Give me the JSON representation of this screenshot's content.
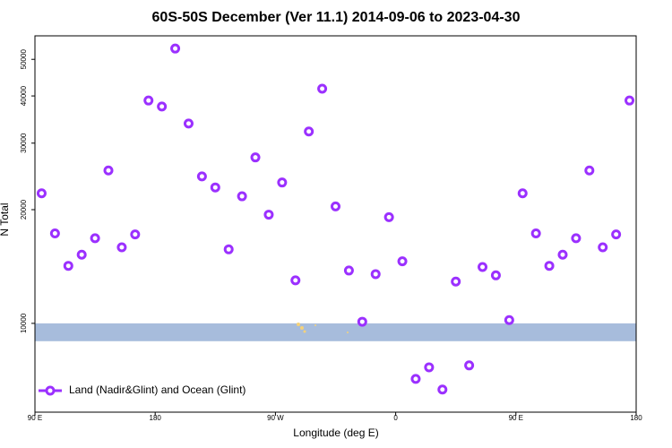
{
  "chart_data": {
    "type": "scatter",
    "title": "60S-50S December (Ver 11.1)   2014-09-06 to 2023-04-30",
    "x_label": "Longitude (deg E)",
    "y_label": "N Total",
    "series": [
      {
        "name": "Land (Nadir&Glint) and Ocean (Glint)",
        "color": "#9b30ff",
        "x": [
          95,
          105,
          115,
          125,
          135,
          145,
          155,
          165,
          175,
          185,
          195,
          205,
          215,
          225,
          235,
          245,
          255,
          265,
          275,
          285,
          295,
          305,
          315,
          325,
          335,
          345,
          355,
          365,
          375,
          385,
          395,
          405,
          415,
          425,
          435,
          445,
          455,
          465,
          475,
          485,
          495,
          505,
          515,
          525,
          535
        ],
        "values": [
          22100,
          17300,
          14200,
          15200,
          16800,
          25400,
          15900,
          17200,
          38900,
          37500,
          53400,
          33800,
          24500,
          22900,
          15700,
          21700,
          27500,
          19400,
          23600,
          13000,
          32200,
          41800,
          20400,
          13800,
          10100,
          13500,
          19100,
          14600,
          7130,
          7650,
          6680,
          12900,
          7740,
          14100,
          13400,
          10200,
          22100,
          17300,
          14200,
          15200,
          16800,
          25400,
          15900,
          17200,
          38900
        ]
      }
    ],
    "shaded_band": {
      "range": [
        8970,
        10000
      ],
      "color": "#a7bcdc"
    },
    "xlim": [
      90,
      540
    ],
    "xticks": [
      {
        "value": 90,
        "label": "90 E"
      },
      {
        "value": 180,
        "label": "180"
      },
      {
        "value": 270,
        "label": "90 W"
      },
      {
        "value": 360,
        "label": "0"
      },
      {
        "value": 450,
        "label": "90 E"
      },
      {
        "value": 540,
        "label": "180"
      }
    ],
    "ylim": [
      5820,
      57700
    ],
    "ylog": true,
    "yticks": [
      10000,
      20000,
      30000,
      40000,
      50000
    ],
    "legend": "bottom-left"
  }
}
